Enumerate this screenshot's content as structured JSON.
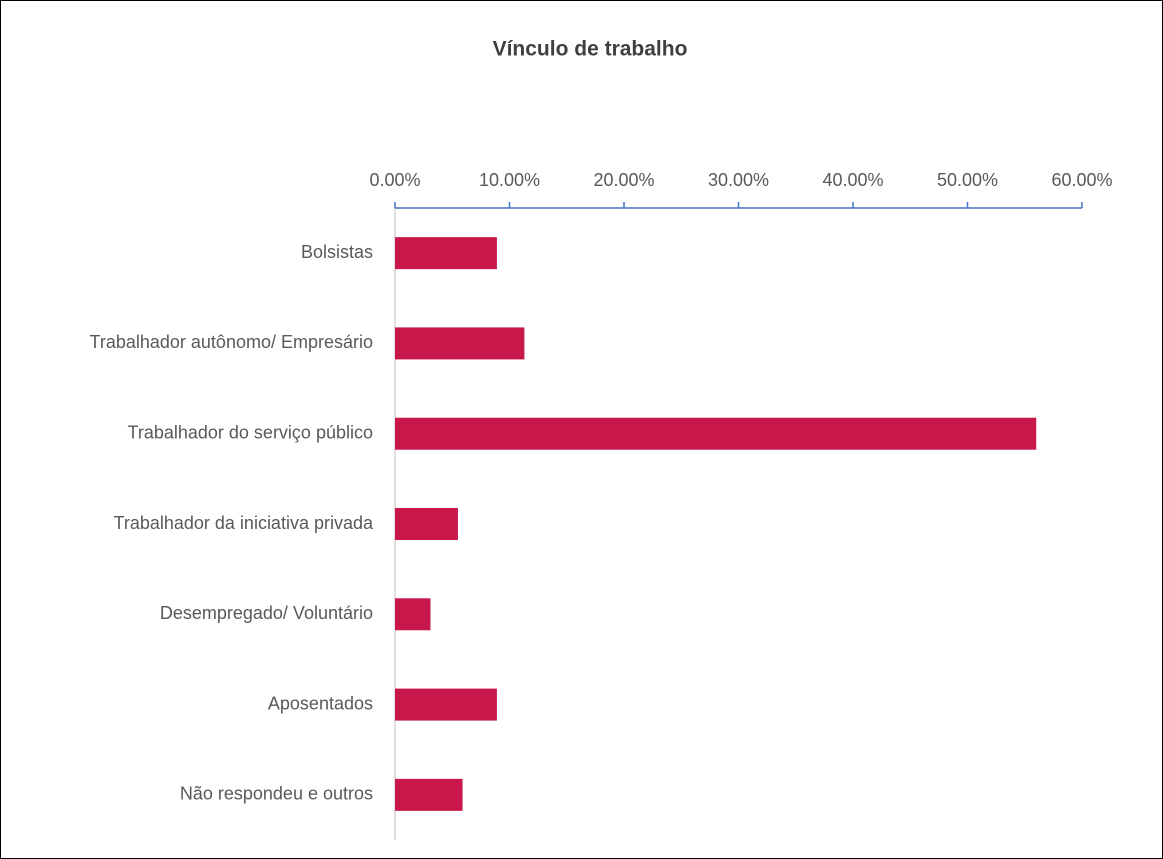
{
  "chart_data": {
    "type": "bar",
    "orientation": "horizontal",
    "title": "Vínculo de trabalho",
    "categories": [
      "Bolsistas",
      "Trabalhador autônomo/ Empresário",
      "Trabalhador do serviço público",
      "Trabalhador da iniciativa privada",
      "Desempregado/ Voluntário",
      "Aposentados",
      "Não respondeu e outros"
    ],
    "values": [
      8.9,
      11.3,
      56.0,
      5.5,
      3.1,
      8.9,
      5.9
    ],
    "color": "#c8174b",
    "xlim": [
      0,
      60
    ],
    "xticks": [
      {
        "value": 0,
        "label": "0.00%"
      },
      {
        "value": 10,
        "label": "10.00%"
      },
      {
        "value": 20,
        "label": "20.00%"
      },
      {
        "value": 30,
        "label": "30.00%"
      },
      {
        "value": 40,
        "label": "40.00%"
      },
      {
        "value": 50,
        "label": "50.00%"
      },
      {
        "value": 60,
        "label": "60.00%"
      }
    ],
    "grid": false
  }
}
